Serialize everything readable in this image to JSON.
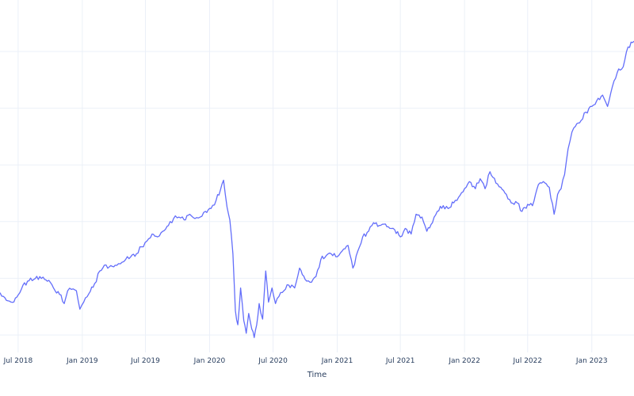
{
  "chart_data": {
    "type": "line",
    "title": "",
    "xlabel": "Time",
    "ylabel": "",
    "x_range": [
      "2018-05-10",
      "2023-05-02"
    ],
    "y_range": [
      0,
      100
    ],
    "grid": true,
    "line_color": "#636efa",
    "x_ticks": [
      {
        "date": "2018-07-01",
        "label": "Jul 2018"
      },
      {
        "date": "2019-01-01",
        "label": "Jan 2019"
      },
      {
        "date": "2019-07-01",
        "label": "Jul 2019"
      },
      {
        "date": "2020-01-01",
        "label": "Jan 2020"
      },
      {
        "date": "2020-07-01",
        "label": "Jul 2020"
      },
      {
        "date": "2021-01-01",
        "label": "Jan 2021"
      },
      {
        "date": "2021-07-01",
        "label": "Jul 2021"
      },
      {
        "date": "2022-01-01",
        "label": "Jan 2022"
      },
      {
        "date": "2022-07-01",
        "label": "Jul 2022"
      },
      {
        "date": "2023-01-01",
        "label": "Jan 2023"
      }
    ],
    "y_gridlines": [
      0,
      20,
      40,
      60,
      80,
      100
    ],
    "series": [
      {
        "points": [
          [
            "2018-05-10",
            16.3
          ],
          [
            "2018-05-20",
            15.0
          ],
          [
            "2018-06-01",
            13.5
          ],
          [
            "2018-06-15",
            12.9
          ],
          [
            "2018-07-01",
            15.5
          ],
          [
            "2018-07-15",
            19.0
          ],
          [
            "2018-08-01",
            20.5
          ],
          [
            "2018-08-15",
            21.0
          ],
          [
            "2018-09-01",
            22.0
          ],
          [
            "2018-09-15",
            21.0
          ],
          [
            "2018-10-01",
            20.0
          ],
          [
            "2018-10-15",
            17.0
          ],
          [
            "2018-11-01",
            15.5
          ],
          [
            "2018-11-10",
            12.5
          ],
          [
            "2018-11-20",
            17.0
          ],
          [
            "2018-12-01",
            17.5
          ],
          [
            "2018-12-15",
            17.0
          ],
          [
            "2018-12-25",
            10.5
          ],
          [
            "2019-01-05",
            13.0
          ],
          [
            "2019-01-20",
            16.0
          ],
          [
            "2019-02-05",
            19.5
          ],
          [
            "2019-02-20",
            24.0
          ],
          [
            "2019-03-05",
            26.0
          ],
          [
            "2019-03-20",
            25.5
          ],
          [
            "2019-04-05",
            26.0
          ],
          [
            "2019-04-20",
            26.5
          ],
          [
            "2019-05-05",
            28.0
          ],
          [
            "2019-05-20",
            29.0
          ],
          [
            "2019-06-05",
            30.0
          ],
          [
            "2019-06-20",
            32.5
          ],
          [
            "2019-07-05",
            34.5
          ],
          [
            "2019-07-20",
            37.0
          ],
          [
            "2019-08-05",
            36.0
          ],
          [
            "2019-08-20",
            38.0
          ],
          [
            "2019-09-05",
            40.0
          ],
          [
            "2019-09-20",
            42.5
          ],
          [
            "2019-10-05",
            43.0
          ],
          [
            "2019-10-20",
            42.0
          ],
          [
            "2019-11-05",
            44.0
          ],
          [
            "2019-11-20",
            42.5
          ],
          [
            "2019-12-05",
            43.0
          ],
          [
            "2019-12-20",
            45.0
          ],
          [
            "2020-01-05",
            46.0
          ],
          [
            "2020-01-20",
            49.0
          ],
          [
            "2020-02-01",
            52.5
          ],
          [
            "2020-02-10",
            56.0
          ],
          [
            "2020-02-20",
            46.5
          ],
          [
            "2020-02-28",
            42.0
          ],
          [
            "2020-03-08",
            30.0
          ],
          [
            "2020-03-15",
            10.0
          ],
          [
            "2020-03-22",
            5.0
          ],
          [
            "2020-03-30",
            18.0
          ],
          [
            "2020-04-08",
            6.5
          ],
          [
            "2020-04-15",
            2.0
          ],
          [
            "2020-04-22",
            9.0
          ],
          [
            "2020-05-01",
            3.5
          ],
          [
            "2020-05-08",
            0.5
          ],
          [
            "2020-05-15",
            5.0
          ],
          [
            "2020-05-22",
            12.5
          ],
          [
            "2020-06-01",
            7.0
          ],
          [
            "2020-06-10",
            24.0
          ],
          [
            "2020-06-18",
            13.0
          ],
          [
            "2020-06-28",
            18.0
          ],
          [
            "2020-07-08",
            12.5
          ],
          [
            "2020-07-18",
            15.0
          ],
          [
            "2020-08-01",
            17.0
          ],
          [
            "2020-08-15",
            19.0
          ],
          [
            "2020-09-01",
            18.0
          ],
          [
            "2020-09-15",
            25.0
          ],
          [
            "2020-10-01",
            21.0
          ],
          [
            "2020-10-15",
            20.0
          ],
          [
            "2020-11-01",
            22.0
          ],
          [
            "2020-11-15",
            28.0
          ],
          [
            "2020-12-01",
            29.5
          ],
          [
            "2020-12-15",
            30.0
          ],
          [
            "2021-01-01",
            29.0
          ],
          [
            "2021-01-15",
            31.0
          ],
          [
            "2021-02-01",
            33.0
          ],
          [
            "2021-02-15",
            25.0
          ],
          [
            "2021-03-01",
            31.0
          ],
          [
            "2021-03-15",
            36.0
          ],
          [
            "2021-04-01",
            38.0
          ],
          [
            "2021-04-15",
            41.0
          ],
          [
            "2021-05-01",
            40.0
          ],
          [
            "2021-05-15",
            40.5
          ],
          [
            "2021-06-01",
            39.0
          ],
          [
            "2021-06-15",
            38.5
          ],
          [
            "2021-07-01",
            36.0
          ],
          [
            "2021-07-15",
            39.0
          ],
          [
            "2021-08-01",
            37.0
          ],
          [
            "2021-08-15",
            44.0
          ],
          [
            "2021-09-01",
            43.0
          ],
          [
            "2021-09-15",
            38.0
          ],
          [
            "2021-10-01",
            41.0
          ],
          [
            "2021-10-15",
            45.0
          ],
          [
            "2021-11-01",
            47.0
          ],
          [
            "2021-11-15",
            46.0
          ],
          [
            "2021-12-01",
            48.0
          ],
          [
            "2021-12-15",
            50.0
          ],
          [
            "2022-01-01",
            53.0
          ],
          [
            "2022-01-15",
            55.5
          ],
          [
            "2022-02-01",
            53.0
          ],
          [
            "2022-02-15",
            56.5
          ],
          [
            "2022-03-01",
            53.0
          ],
          [
            "2022-03-15",
            59.0
          ],
          [
            "2022-04-01",
            55.0
          ],
          [
            "2022-04-15",
            53.5
          ],
          [
            "2022-05-01",
            51.0
          ],
          [
            "2022-05-15",
            48.0
          ],
          [
            "2022-06-01",
            48.0
          ],
          [
            "2022-06-15",
            45.0
          ],
          [
            "2022-07-01",
            47.5
          ],
          [
            "2022-07-15",
            47.0
          ],
          [
            "2022-08-01",
            54.5
          ],
          [
            "2022-08-15",
            55.5
          ],
          [
            "2022-09-01",
            53.5
          ],
          [
            "2022-09-15",
            44.0
          ],
          [
            "2022-09-25",
            51.0
          ],
          [
            "2022-10-05",
            53.0
          ],
          [
            "2022-10-15",
            58.0
          ],
          [
            "2022-10-25",
            67.0
          ],
          [
            "2022-11-05",
            73.0
          ],
          [
            "2022-11-15",
            75.0
          ],
          [
            "2022-12-01",
            77.0
          ],
          [
            "2022-12-15",
            80.0
          ],
          [
            "2023-01-01",
            82.0
          ],
          [
            "2023-01-15",
            84.0
          ],
          [
            "2023-02-01",
            86.0
          ],
          [
            "2023-02-15",
            82.0
          ],
          [
            "2023-03-01",
            89.0
          ],
          [
            "2023-03-15",
            94.0
          ],
          [
            "2023-04-01",
            96.0
          ],
          [
            "2023-04-15",
            103.0
          ],
          [
            "2023-05-02",
            105.0
          ]
        ]
      }
    ]
  }
}
